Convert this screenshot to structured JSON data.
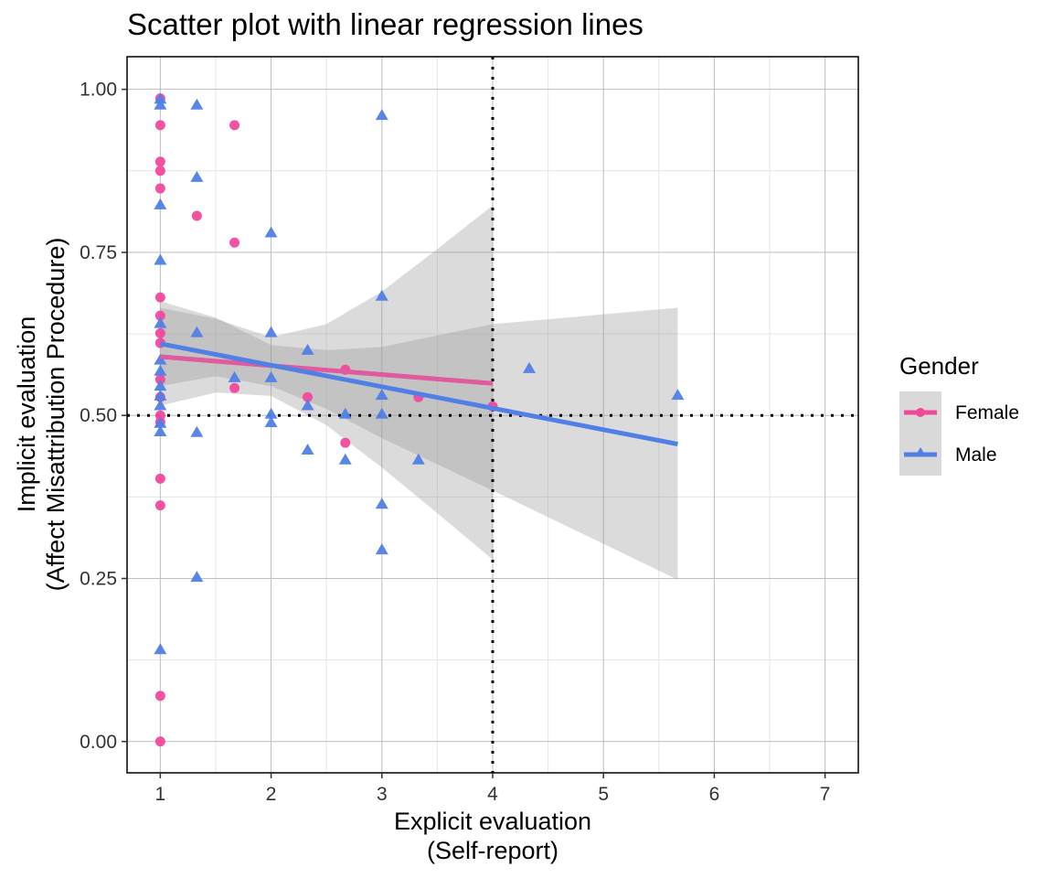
{
  "chart_data": {
    "type": "scatter",
    "title": "Scatter plot with linear regression lines",
    "xlabel": [
      "Explicit evaluation",
      "(Self-report)"
    ],
    "ylabel": [
      "Implicit evaluation",
      "(Affect Misattribution Procedure)"
    ],
    "xlim": [
      0.7,
      7.3
    ],
    "ylim": [
      -0.048,
      1.05
    ],
    "x_ticks": [
      1,
      2,
      3,
      4,
      5,
      6,
      7
    ],
    "x_tick_labels": [
      "1",
      "2",
      "3",
      "4",
      "5",
      "6",
      "7"
    ],
    "y_ticks": [
      0,
      0.25,
      0.5,
      0.75,
      1.0
    ],
    "y_tick_labels": [
      "0.00",
      "0.25",
      "0.50",
      "0.75",
      "1.00"
    ],
    "grid": true,
    "reference_lines": {
      "vertical_x": 4,
      "horizontal_y": 0.5,
      "style": "dotted"
    },
    "legend": {
      "title": "Gender",
      "placement": "right",
      "entries": [
        "Female",
        "Male"
      ]
    },
    "series": [
      {
        "name": "Female",
        "color": "#F2489C",
        "line_color": "#E05A9E",
        "marker": "circle",
        "points": [
          [
            1,
            0.986
          ],
          [
            1,
            0.945
          ],
          [
            1,
            0.889
          ],
          [
            1,
            0.875
          ],
          [
            1,
            0.848
          ],
          [
            1,
            0.681
          ],
          [
            1,
            0.653
          ],
          [
            1,
            0.626
          ],
          [
            1,
            0.611
          ],
          [
            1,
            0.555
          ],
          [
            1,
            0.528
          ],
          [
            1,
            0.5
          ],
          [
            1,
            0.49
          ],
          [
            1,
            0.403
          ],
          [
            1,
            0.362
          ],
          [
            1,
            0.07
          ],
          [
            1,
            0.0
          ],
          [
            1.33,
            0.806
          ],
          [
            1.67,
            0.945
          ],
          [
            1.67,
            0.765
          ],
          [
            1.67,
            0.542
          ],
          [
            2.33,
            0.528
          ],
          [
            2.67,
            0.57
          ],
          [
            2.67,
            0.458
          ],
          [
            3.33,
            0.528
          ],
          [
            4,
            0.514
          ]
        ],
        "regression": {
          "x": [
            1,
            4
          ],
          "y": [
            0.59,
            0.549
          ]
        },
        "ci": {
          "x": [
            1,
            1.5,
            2,
            2.5,
            3,
            3.5,
            4
          ],
          "lower": [
            0.515,
            0.535,
            0.53,
            0.485,
            0.42,
            0.35,
            0.279
          ],
          "upper": [
            0.665,
            0.648,
            0.62,
            0.64,
            0.69,
            0.755,
            0.822
          ]
        }
      },
      {
        "name": "Male",
        "color": "#5080E6",
        "line_color": "#5080E6",
        "marker": "triangle",
        "points": [
          [
            1,
            0.985
          ],
          [
            1,
            0.976
          ],
          [
            1,
            0.823
          ],
          [
            1,
            0.738
          ],
          [
            1,
            0.641
          ],
          [
            1,
            0.585
          ],
          [
            1,
            0.568
          ],
          [
            1,
            0.545
          ],
          [
            1,
            0.53
          ],
          [
            1,
            0.515
          ],
          [
            1,
            0.488
          ],
          [
            1,
            0.475
          ],
          [
            1,
            0.141
          ],
          [
            1.33,
            0.976
          ],
          [
            1.33,
            0.865
          ],
          [
            1.33,
            0.627
          ],
          [
            1.33,
            0.474
          ],
          [
            1.33,
            0.252
          ],
          [
            1.67,
            0.558
          ],
          [
            2,
            0.78
          ],
          [
            2,
            0.627
          ],
          [
            2,
            0.558
          ],
          [
            2,
            0.502
          ],
          [
            2,
            0.489
          ],
          [
            2.33,
            0.6
          ],
          [
            2.33,
            0.515
          ],
          [
            2.33,
            0.447
          ],
          [
            2.67,
            0.502
          ],
          [
            2.67,
            0.432
          ],
          [
            3,
            0.96
          ],
          [
            3,
            0.683
          ],
          [
            3,
            0.531
          ],
          [
            3,
            0.502
          ],
          [
            3,
            0.364
          ],
          [
            3,
            0.294
          ],
          [
            3.33,
            0.432
          ],
          [
            4.33,
            0.572
          ],
          [
            5.67,
            0.531
          ]
        ],
        "regression": {
          "x": [
            1,
            5.67
          ],
          "y": [
            0.61,
            0.456
          ]
        },
        "ci": {
          "x": [
            1,
            1.5,
            2,
            2.5,
            3,
            4,
            5.67
          ],
          "lower": [
            0.545,
            0.56,
            0.545,
            0.51,
            0.465,
            0.385,
            0.248
          ],
          "upper": [
            0.675,
            0.65,
            0.608,
            0.6,
            0.605,
            0.64,
            0.665
          ]
        }
      }
    ]
  }
}
